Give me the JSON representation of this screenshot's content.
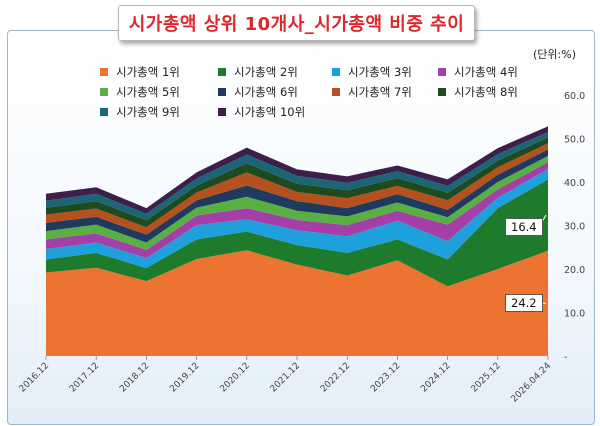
{
  "title": "시가총액 상위 10개사_시가총액 비중 추이",
  "unit_label": "(단위:%)",
  "chart_data": {
    "type": "area",
    "stacked": true,
    "categories": [
      "2016.12",
      "2017.12",
      "2018.12",
      "2019.12",
      "2020.12",
      "2021.12",
      "2022.12",
      "2023.12",
      "2024.12",
      "2025.12",
      "2026.04.24"
    ],
    "ylim": [
      0,
      60
    ],
    "yticks": [
      "-",
      "10.0",
      "20.0",
      "30.0",
      "40.0",
      "50.0",
      "60.0"
    ],
    "grid": false,
    "legend_position": "top",
    "series": [
      {
        "name": "시가총액 1위",
        "color": "#ed7331",
        "values": [
          19.2,
          20.3,
          17.2,
          22.3,
          24.3,
          21.0,
          18.5,
          22.0,
          16.0,
          20.0,
          24.2
        ]
      },
      {
        "name": "시가총액 2위",
        "color": "#1e7b2c",
        "values": [
          3.0,
          3.4,
          3.0,
          4.5,
          4.3,
          4.5,
          5.2,
          4.8,
          6.2,
          14.0,
          16.4
        ]
      },
      {
        "name": "시가총액 3위",
        "color": "#1da0dc",
        "values": [
          2.4,
          2.4,
          2.3,
          3.3,
          2.8,
          3.4,
          3.8,
          4.3,
          4.2,
          2.4,
          2.4
        ]
      },
      {
        "name": "시가총액 4위",
        "color": "#a53fa8",
        "values": [
          2.2,
          2.1,
          1.9,
          2.2,
          2.6,
          2.4,
          2.6,
          2.3,
          3.8,
          1.9,
          1.6
        ]
      },
      {
        "name": "시가총액 5위",
        "color": "#58b043",
        "values": [
          1.9,
          2.0,
          1.7,
          1.8,
          2.6,
          2.1,
          2.0,
          1.9,
          1.7,
          1.7,
          1.4
        ]
      },
      {
        "name": "시가총액 6위",
        "color": "#1e3a5e",
        "values": [
          1.9,
          1.8,
          1.8,
          1.7,
          2.6,
          2.2,
          1.9,
          1.9,
          1.7,
          1.7,
          1.5
        ]
      },
      {
        "name": "시가총액 7위",
        "color": "#b5501f",
        "values": [
          1.9,
          1.9,
          1.7,
          1.8,
          3.0,
          2.1,
          2.3,
          1.9,
          2.2,
          1.7,
          1.4
        ]
      },
      {
        "name": "시가총액 8위",
        "color": "#1e4a1e",
        "values": [
          1.6,
          1.7,
          1.6,
          1.6,
          2.1,
          1.9,
          1.8,
          1.8,
          1.7,
          1.5,
          1.4
        ]
      },
      {
        "name": "시가총액 9위",
        "color": "#1a6677",
        "values": [
          1.6,
          1.7,
          1.5,
          1.6,
          2.0,
          1.8,
          1.7,
          1.6,
          1.6,
          1.5,
          1.2
        ]
      },
      {
        "name": "시가총액 10위",
        "color": "#3c1f4a",
        "values": [
          1.6,
          1.5,
          1.3,
          1.4,
          1.6,
          1.5,
          1.5,
          1.3,
          1.5,
          1.4,
          1.3
        ]
      }
    ],
    "annotations": [
      {
        "series": "시가총액 2위",
        "category": "2026.04.24",
        "label": "16.4"
      },
      {
        "series": "시가총액 1위",
        "category": "2026.04.24",
        "label": "24.2"
      }
    ]
  }
}
